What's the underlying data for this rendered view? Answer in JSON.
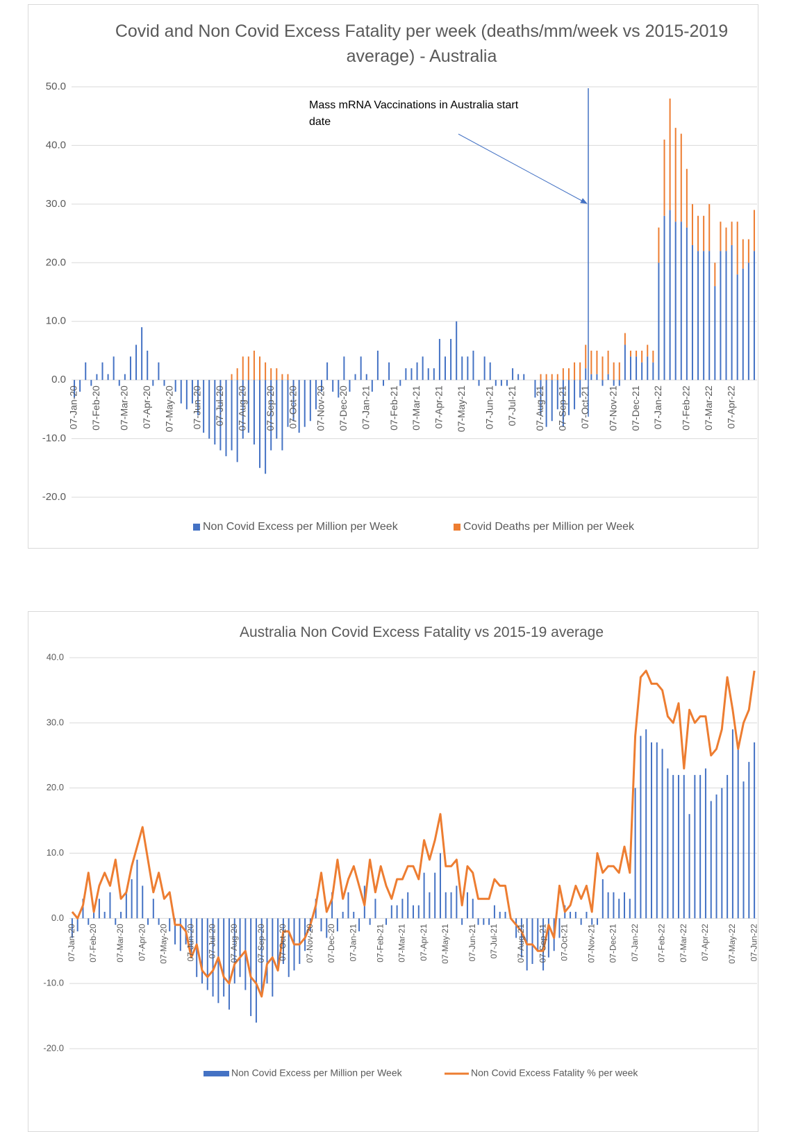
{
  "chart_data": [
    {
      "type": "bar",
      "title": "Covid and Non Covid Excess Fatality per week (deaths/mm/week vs 2015-2019 average) - Australia",
      "annotation": "Mass mRNA Vaccinations in Australia start date",
      "categories": [
        "07-Jan-20",
        null,
        null,
        null,
        "07-Feb-20",
        null,
        null,
        null,
        null,
        "07-Mar-20",
        null,
        null,
        null,
        "07-Apr-20",
        null,
        null,
        null,
        "07-May-20",
        null,
        null,
        null,
        null,
        "07-Jun-20",
        null,
        null,
        null,
        "07-Jul-20",
        null,
        null,
        null,
        "07-Aug-20",
        null,
        null,
        null,
        null,
        "07-Sep-20",
        null,
        null,
        null,
        "07-Oct-20",
        null,
        null,
        null,
        null,
        "07-Nov-20",
        null,
        null,
        null,
        "07-Dec-20",
        null,
        null,
        null,
        "07-Jan-21",
        null,
        null,
        null,
        null,
        "07-Feb-21",
        null,
        null,
        null,
        "07-Mar-21",
        null,
        null,
        null,
        "07-Apr-21",
        null,
        null,
        null,
        "07-May-21",
        null,
        null,
        null,
        null,
        "07-Jun-21",
        null,
        null,
        null,
        "07-Jul-21",
        null,
        null,
        null,
        null,
        "07-Aug-21",
        null,
        null,
        null,
        "07-Sep-21",
        null,
        null,
        null,
        "07-Oct-21",
        null,
        null,
        null,
        null,
        "07-Nov-21",
        null,
        null,
        null,
        "07-Dec-21",
        null,
        null,
        null,
        "07-Jan-22",
        null,
        null,
        null,
        null,
        "07-Feb-22",
        null,
        null,
        null,
        "07-Mar-22",
        null,
        null,
        null,
        "07-Apr-22",
        null,
        null,
        null,
        null
      ],
      "series": [
        {
          "name": "Non Covid Excess per Million per Week",
          "color": "#4472c4",
          "values": [
            -3,
            -2,
            3,
            -1,
            1,
            3,
            1,
            4,
            -1,
            1,
            4,
            6,
            9,
            5,
            -1,
            3,
            -1,
            0,
            -2,
            -4,
            -5,
            -4,
            -6,
            -9,
            -10,
            -11,
            -12,
            -13,
            -12,
            -14,
            -10,
            -9,
            -11,
            -15,
            -16,
            -12,
            -10,
            -12,
            -8,
            -7,
            -9,
            -8,
            -7,
            -5,
            -2,
            3,
            -2,
            -3,
            4,
            -2,
            1,
            4,
            1,
            -2,
            5,
            -1,
            3,
            0,
            -1,
            2,
            2,
            3,
            4,
            2,
            2,
            7,
            4,
            7,
            10,
            4,
            4,
            5,
            -1,
            4,
            3,
            -1,
            -1,
            -1,
            2,
            1,
            1,
            0,
            -3,
            -6,
            -8,
            -7,
            -5,
            -8,
            -6,
            -5,
            -3,
            2,
            1,
            1,
            -1,
            1,
            -1,
            -1,
            6,
            4,
            4,
            3,
            4,
            3,
            20,
            28,
            29,
            27,
            27,
            26,
            23,
            22,
            22,
            22,
            16,
            22,
            22,
            23,
            18,
            19,
            20,
            22
          ]
        },
        {
          "name": "Covid Deaths per Million per Week",
          "color": "#ed7d31",
          "values": [
            0,
            0,
            0,
            0,
            0,
            0,
            0,
            0,
            0,
            0,
            0,
            0,
            0,
            0,
            0,
            0,
            0,
            0,
            0,
            0,
            0,
            0,
            0,
            0,
            0,
            0,
            0,
            0,
            1,
            2,
            4,
            4,
            5,
            4,
            3,
            2,
            2,
            1,
            1,
            0,
            0,
            0,
            0,
            0,
            0,
            0,
            0,
            0,
            0,
            0,
            0,
            0,
            0,
            0,
            0,
            0,
            0,
            0,
            0,
            0,
            0,
            0,
            0,
            0,
            0,
            0,
            0,
            0,
            0,
            0,
            0,
            0,
            0,
            0,
            0,
            0,
            0,
            0,
            0,
            0,
            0,
            0,
            0,
            1,
            1,
            1,
            1,
            2,
            2,
            3,
            3,
            4,
            4,
            4,
            4,
            4,
            3,
            3,
            2,
            1,
            1,
            2,
            2,
            2,
            6,
            13,
            19,
            16,
            15,
            10,
            7,
            6,
            6,
            8,
            4,
            5,
            4,
            4,
            9,
            5,
            4,
            7
          ]
        }
      ],
      "ylim": [
        -20,
        50
      ],
      "yticks": [
        {
          "value": -20,
          "label": "-20.0"
        },
        {
          "value": -10,
          "label": "-10.0"
        },
        {
          "value": 0,
          "label": "0.0"
        },
        {
          "value": 10,
          "label": "10.0"
        },
        {
          "value": 20,
          "label": "20.0"
        },
        {
          "value": 30,
          "label": "30.0"
        },
        {
          "value": 40,
          "label": "40.0"
        },
        {
          "value": 50,
          "label": "50.0"
        }
      ],
      "grid": true,
      "legend": "bottom"
    },
    {
      "type": "bar",
      "title": "Australia Non Covid Excess Fatality vs 2015-19 average",
      "categories": [
        "07-Jan-20",
        null,
        null,
        null,
        "07-Feb-20",
        null,
        null,
        null,
        null,
        "07-Mar-20",
        null,
        null,
        null,
        "07-Apr-20",
        null,
        null,
        null,
        "07-May-20",
        null,
        null,
        null,
        null,
        "07-Jun-20",
        null,
        null,
        null,
        "07-Jul-20",
        null,
        null,
        null,
        "07-Aug-20",
        null,
        null,
        null,
        null,
        "07-Sep-20",
        null,
        null,
        null,
        "07-Oct-20",
        null,
        null,
        null,
        null,
        "07-Nov-20",
        null,
        null,
        null,
        "07-Dec-20",
        null,
        null,
        null,
        "07-Jan-21",
        null,
        null,
        null,
        null,
        "07-Feb-21",
        null,
        null,
        null,
        "07-Mar-21",
        null,
        null,
        null,
        "07-Apr-21",
        null,
        null,
        null,
        "07-May-21",
        null,
        null,
        null,
        null,
        "07-Jun-21",
        null,
        null,
        null,
        "07-Jul-21",
        null,
        null,
        null,
        null,
        "07-Aug-21",
        null,
        null,
        null,
        "07-Sep-21",
        null,
        null,
        null,
        "07-Oct-21",
        null,
        null,
        null,
        null,
        "07-Nov-21",
        null,
        null,
        null,
        "07-Dec-21",
        null,
        null,
        null,
        "07-Jan-22",
        null,
        null,
        null,
        null,
        "07-Feb-22",
        null,
        null,
        null,
        "07-Mar-22",
        null,
        null,
        null,
        "07-Apr-22",
        null,
        null,
        null,
        null,
        "07-May-22",
        null,
        null,
        null,
        "07-Jun-22"
      ],
      "series": [
        {
          "name": "Non Covid Excess per Million per Week",
          "color": "#4472c4",
          "values": [
            -3,
            -2,
            3,
            -1,
            1,
            3,
            1,
            4,
            -1,
            1,
            4,
            6,
            9,
            5,
            -1,
            3,
            -1,
            0,
            -2,
            -4,
            -5,
            -4,
            -6,
            -9,
            -10,
            -11,
            -12,
            -13,
            -12,
            -14,
            -10,
            -9,
            -11,
            -15,
            -16,
            -12,
            -10,
            -12,
            -8,
            -7,
            -9,
            -8,
            -7,
            -5,
            -2,
            3,
            -2,
            -3,
            4,
            -2,
            1,
            4,
            1,
            -2,
            5,
            -1,
            3,
            0,
            -1,
            2,
            2,
            3,
            4,
            2,
            2,
            7,
            4,
            7,
            10,
            4,
            4,
            5,
            -1,
            4,
            3,
            -1,
            -1,
            -1,
            2,
            1,
            1,
            0,
            -3,
            -6,
            -8,
            -7,
            -5,
            -8,
            -6,
            -5,
            -3,
            2,
            1,
            1,
            -1,
            1,
            -1,
            -1,
            6,
            4,
            4,
            3,
            4,
            3,
            20,
            28,
            29,
            27,
            27,
            26,
            23,
            22,
            22,
            22,
            16,
            22,
            22,
            23,
            18,
            19,
            20,
            22,
            29,
            26,
            21,
            24,
            27
          ]
        },
        {
          "name": "Non Covid Excess Fatality % per week",
          "color": "#ed7d31",
          "type": "line",
          "values": [
            1,
            0,
            2,
            7,
            1,
            5,
            7,
            5,
            9,
            3,
            4,
            8,
            11,
            14,
            9,
            4,
            7,
            3,
            4,
            -1,
            -1,
            -2,
            -6,
            -4,
            -8,
            -9,
            -8,
            -6,
            -9,
            -10,
            -7,
            -6,
            -5,
            -9,
            -10,
            -12,
            -7,
            -6,
            -8,
            -2,
            -2,
            -4,
            -4,
            -3,
            -1,
            2,
            7,
            1,
            3,
            9,
            3,
            6,
            8,
            5,
            2,
            9,
            4,
            8,
            5,
            3,
            6,
            6,
            8,
            8,
            6,
            12,
            9,
            12,
            16,
            8,
            8,
            9,
            2,
            8,
            7,
            3,
            3,
            3,
            6,
            5,
            5,
            0,
            -1,
            -2,
            -4,
            -4,
            -5,
            -5,
            -1,
            -3,
            5,
            1,
            2,
            5,
            3,
            5,
            1,
            10,
            7,
            8,
            8,
            7,
            11,
            7,
            28,
            37,
            38,
            36,
            36,
            35,
            31,
            30,
            33,
            23,
            32,
            30,
            31,
            31,
            25,
            26,
            29,
            37,
            32,
            26,
            30,
            32,
            38
          ]
        }
      ],
      "ylim": [
        -20,
        40
      ],
      "yticks": [
        {
          "value": -20,
          "label": "-20.0"
        },
        {
          "value": -10,
          "label": "-10.0"
        },
        {
          "value": 0,
          "label": "0.0"
        },
        {
          "value": 10,
          "label": "10.0"
        },
        {
          "value": 20,
          "label": "20.0"
        },
        {
          "value": 30,
          "label": "30.0"
        },
        {
          "value": 40,
          "label": "40.0"
        }
      ],
      "grid": true,
      "legend": "bottom"
    }
  ]
}
